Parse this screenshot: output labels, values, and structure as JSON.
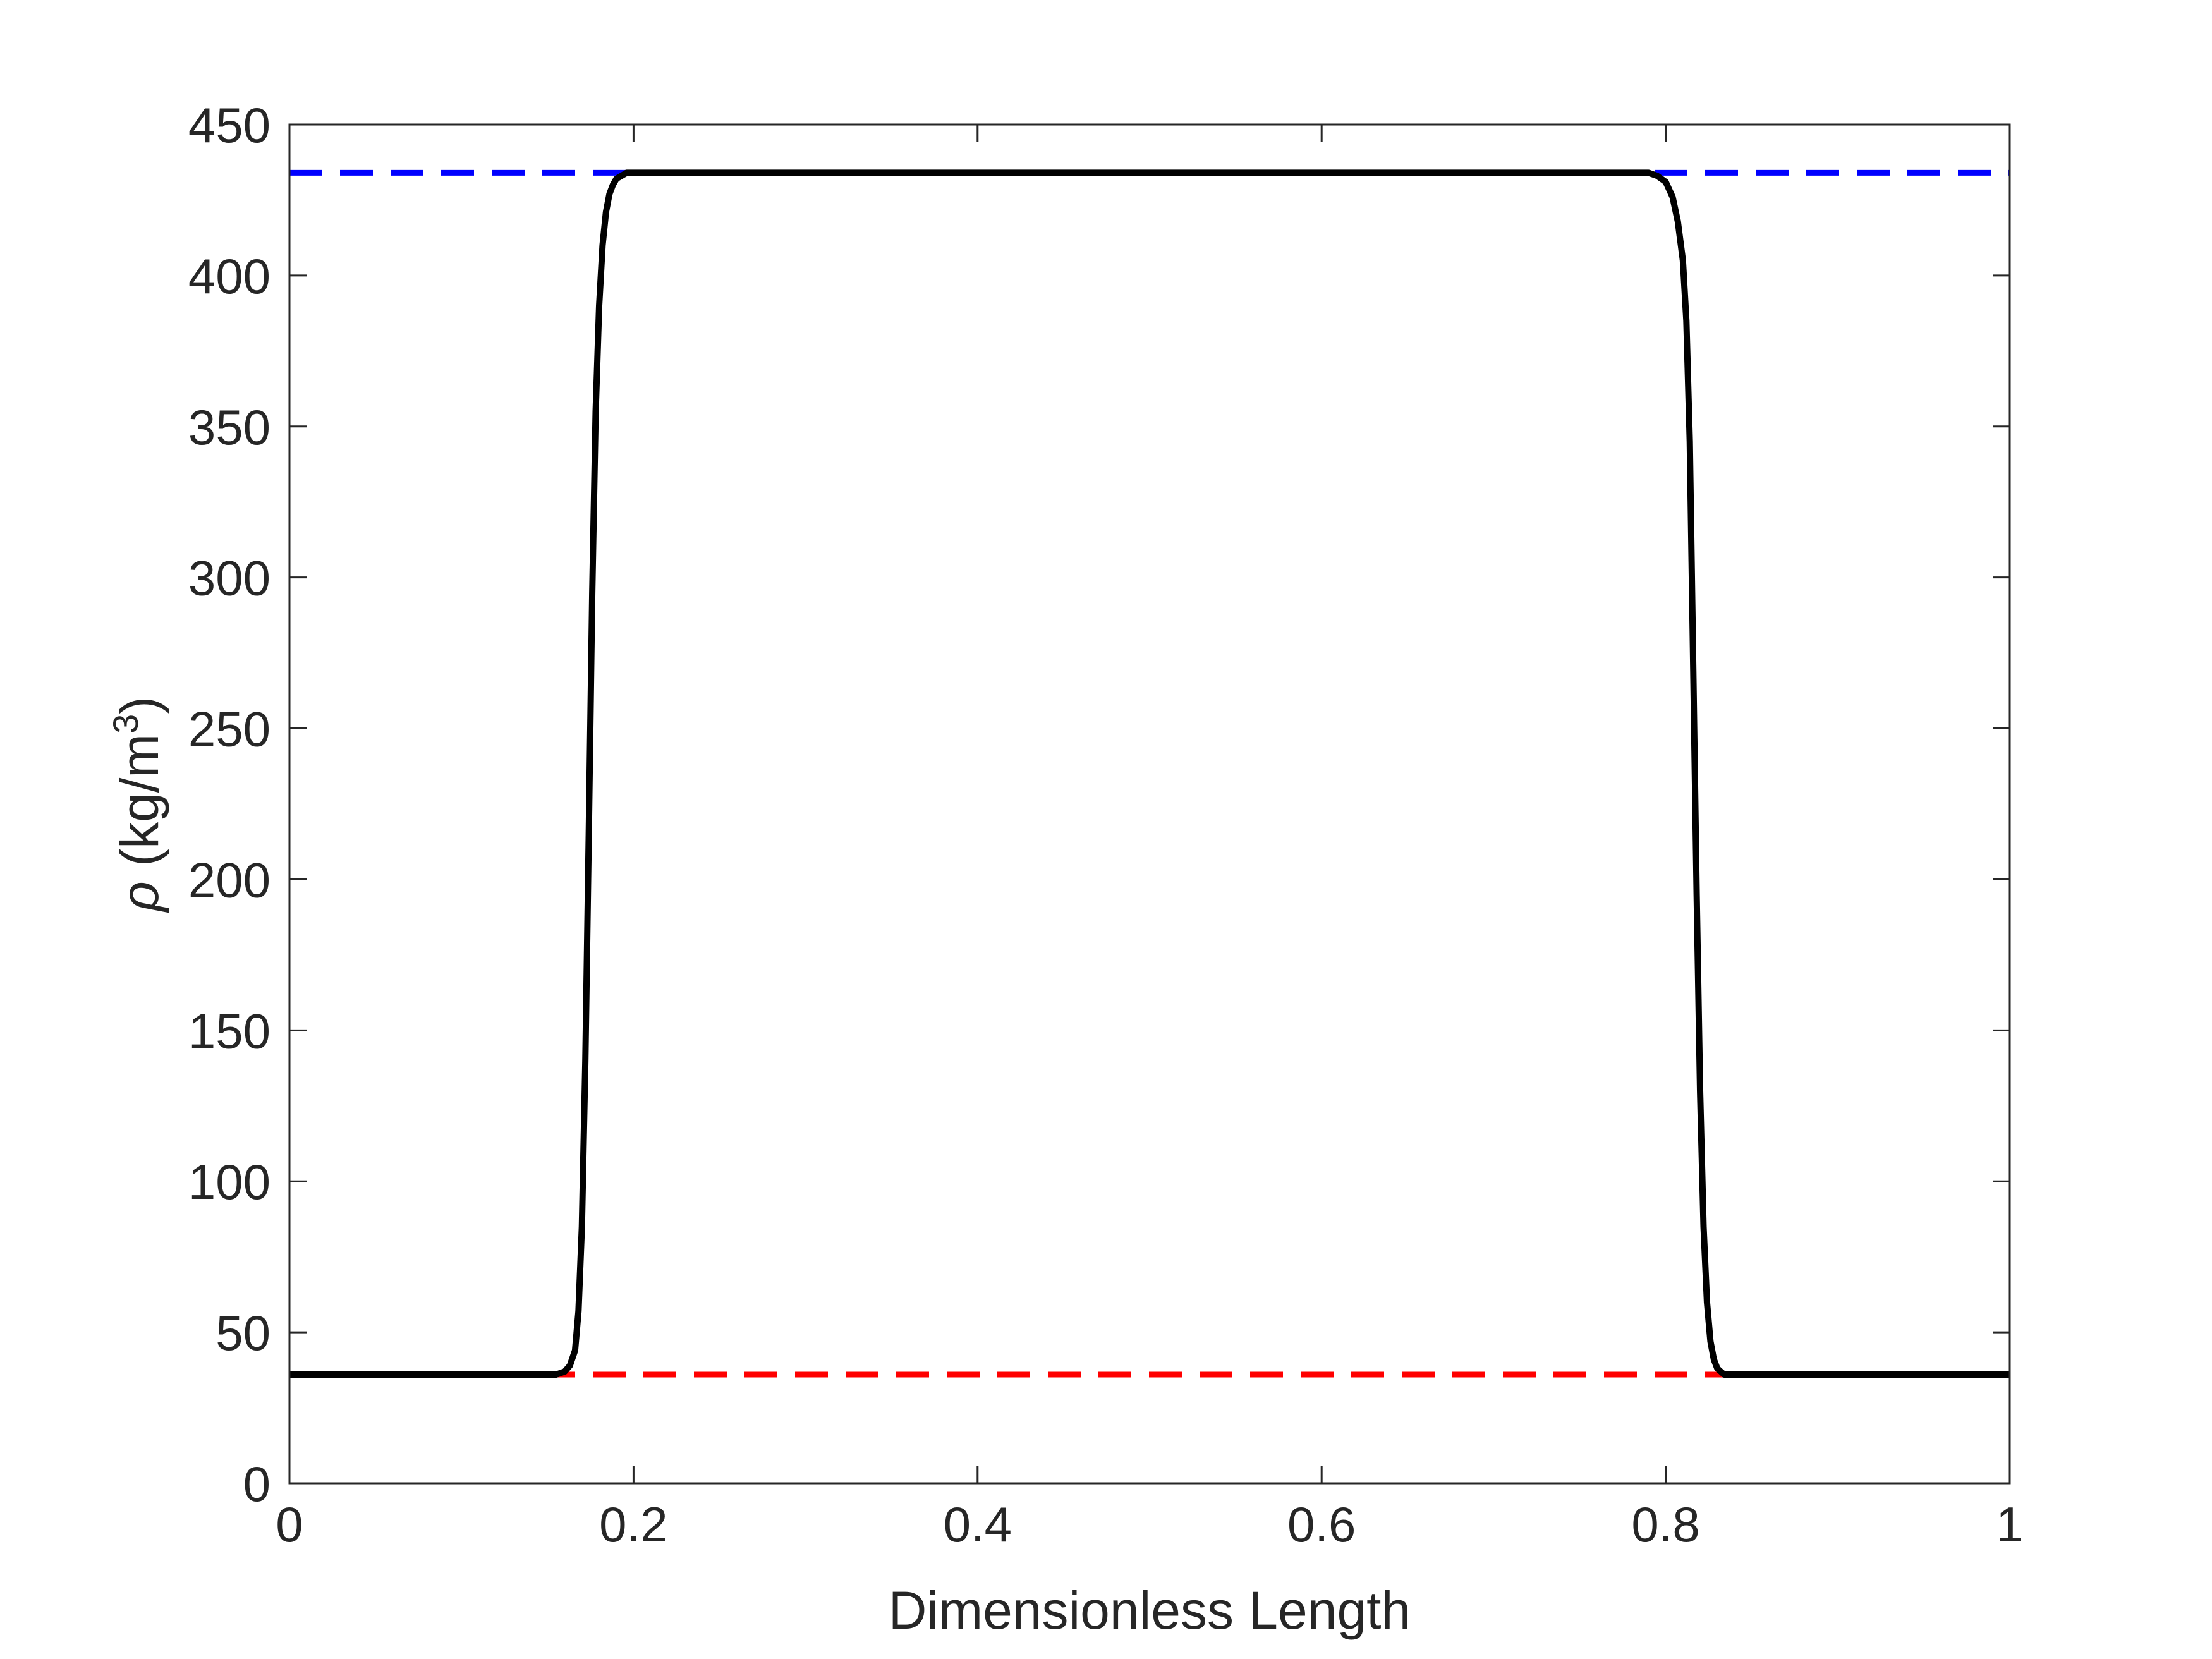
{
  "chart_data": {
    "type": "line",
    "xlabel": "Dimensionless Length",
    "ylabel_symbol": "ρ",
    "ylabel_text": " (kg/m",
    "ylabel_sup": "3",
    "ylabel_close": ")",
    "xlim": [
      0,
      1
    ],
    "ylim": [
      0,
      450
    ],
    "xticks": [
      0,
      0.2,
      0.4,
      0.6,
      0.8,
      1
    ],
    "xtick_labels": [
      "0",
      "0.2",
      "0.4",
      "0.6",
      "0.8",
      "1"
    ],
    "yticks": [
      0,
      50,
      100,
      150,
      200,
      250,
      300,
      350,
      400,
      450
    ],
    "ytick_labels": [
      "0",
      "50",
      "100",
      "150",
      "200",
      "250",
      "300",
      "350",
      "400",
      "450"
    ],
    "grid": false,
    "box": true,
    "series": [
      {
        "style": "dashed",
        "color": "#0000ff",
        "x": [
          0,
          1
        ],
        "y": [
          434,
          434
        ]
      },
      {
        "style": "dashed",
        "color": "#ff0000",
        "x": [
          0,
          1
        ],
        "y": [
          36,
          36
        ]
      },
      {
        "style": "solid",
        "color": "#000000",
        "x": [
          0,
          0.155,
          0.16,
          0.163,
          0.166,
          0.168,
          0.17,
          0.172,
          0.174,
          0.176,
          0.178,
          0.18,
          0.182,
          0.184,
          0.186,
          0.188,
          0.19,
          0.193,
          0.196,
          0.2,
          0.205,
          0.21,
          0.22,
          0.5,
          0.79,
          0.795,
          0.8,
          0.804,
          0.807,
          0.81,
          0.812,
          0.814,
          0.816,
          0.818,
          0.82,
          0.822,
          0.824,
          0.826,
          0.828,
          0.83,
          0.832,
          0.834,
          0.837,
          0.84,
          0.845,
          0.85,
          0.86,
          1
        ],
        "y": [
          36,
          36,
          37,
          39,
          44,
          57,
          85,
          140,
          215,
          295,
          355,
          390,
          410,
          421,
          427,
          430,
          432,
          433,
          434,
          434,
          434,
          434,
          434,
          434,
          434,
          433,
          431,
          426,
          418,
          405,
          385,
          345,
          270,
          195,
          130,
          85,
          60,
          47,
          41,
          38,
          37,
          36,
          36,
          36,
          36,
          36,
          36,
          36
        ]
      }
    ]
  }
}
